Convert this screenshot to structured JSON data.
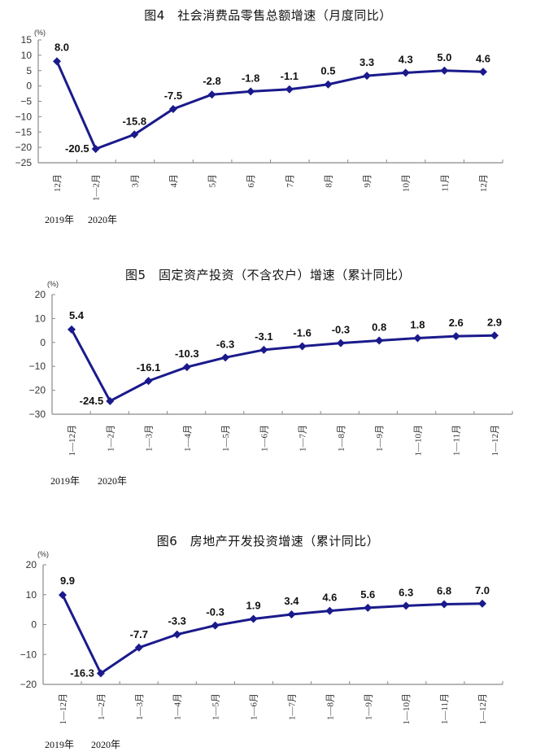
{
  "chart_data": [
    {
      "type": "line",
      "title": "图4　社会消费品零售总额增速（月度同比）",
      "ylabel": "(%)",
      "xlabel": "",
      "ylim": [
        -25,
        15
      ],
      "yticks": [
        15,
        10,
        5,
        0,
        -5,
        -10,
        -15,
        -20,
        -25
      ],
      "categories": [
        "12月",
        "1-2月",
        "3月",
        "4月",
        "5月",
        "6月",
        "7月",
        "8月",
        "9月",
        "10月",
        "11月",
        "12月"
      ],
      "values": [
        8.0,
        -20.5,
        -15.8,
        -7.5,
        -2.8,
        -1.8,
        -1.1,
        0.5,
        3.3,
        4.3,
        5.0,
        4.6
      ],
      "data_labels": [
        "8.0",
        "-20.5",
        "-15.8",
        "-7.5",
        "-2.8",
        "-1.8",
        "-1.1",
        "0.5",
        "3.3",
        "4.3",
        "5.0",
        "4.6"
      ],
      "year_labels": [
        "2019年",
        "2020年"
      ],
      "grid": false,
      "legend": "none",
      "line_color": "#1a1a8c",
      "marker": "diamond"
    },
    {
      "type": "line",
      "title": "图5　固定资产投资（不含农户）增速（累计同比）",
      "ylabel": "(%)",
      "xlabel": "",
      "ylim": [
        -30,
        20
      ],
      "yticks": [
        20,
        10,
        0,
        -10,
        -20,
        -30
      ],
      "categories": [
        "1-12月",
        "1-2月",
        "1-3月",
        "1-4月",
        "1-5月",
        "1-6月",
        "1-7月",
        "1-8月",
        "1-9月",
        "1-10月",
        "1-11月",
        "1-12月"
      ],
      "values": [
        5.4,
        -24.5,
        -16.1,
        -10.3,
        -6.3,
        -3.1,
        -1.6,
        -0.3,
        0.8,
        1.8,
        2.6,
        2.9
      ],
      "data_labels": [
        "5.4",
        "-24.5",
        "-16.1",
        "-10.3",
        "-6.3",
        "-3.1",
        "-1.6",
        "-0.3",
        "0.8",
        "1.8",
        "2.6",
        "2.9"
      ],
      "year_labels": [
        "2019年",
        "2020年"
      ],
      "grid": false,
      "legend": "none",
      "line_color": "#1a1a8c",
      "marker": "diamond"
    },
    {
      "type": "line",
      "title": "图6　房地产开发投资增速（累计同比）",
      "ylabel": "(%)",
      "xlabel": "",
      "ylim": [
        -20,
        20
      ],
      "yticks": [
        20,
        10,
        0,
        -10,
        -20
      ],
      "categories": [
        "1-12月",
        "1-2月",
        "1-3月",
        "1-4月",
        "1-5月",
        "1-6月",
        "1-7月",
        "1-8月",
        "1-9月",
        "1-10月",
        "1-11月",
        "1-12月"
      ],
      "values": [
        9.9,
        -16.3,
        -7.7,
        -3.3,
        -0.3,
        1.9,
        3.4,
        4.6,
        5.6,
        6.3,
        6.8,
        7.0
      ],
      "data_labels": [
        "9.9",
        "-16.3",
        "-7.7",
        "-3.3",
        "-0.3",
        "1.9",
        "3.4",
        "4.6",
        "5.6",
        "6.3",
        "6.8",
        "7.0"
      ],
      "year_labels": [
        "2019年",
        "2020年"
      ],
      "grid": false,
      "legend": "none",
      "line_color": "#1a1a8c",
      "marker": "diamond"
    }
  ]
}
